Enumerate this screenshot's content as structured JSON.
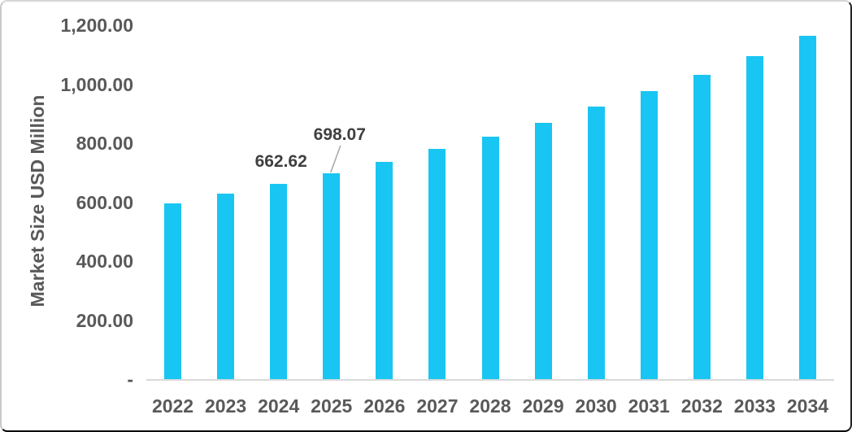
{
  "chart_data": {
    "type": "bar",
    "ylabel": "Market Size USD Million",
    "xlabel": "",
    "categories": [
      "2022",
      "2023",
      "2024",
      "2025",
      "2026",
      "2027",
      "2028",
      "2029",
      "2030",
      "2031",
      "2032",
      "2033",
      "2034"
    ],
    "values": [
      596,
      628,
      662.62,
      698.07,
      737,
      780,
      823,
      870,
      923,
      976,
      1033,
      1095,
      1163
    ],
    "data_labels": [
      {
        "category": "2024",
        "text": "662.62",
        "leader_line": false
      },
      {
        "category": "2025",
        "text": "698.07",
        "leader_line": true
      }
    ],
    "ylim": [
      0,
      1200
    ],
    "ytick_labels": [
      "-",
      "200.00",
      "400.00",
      "600.00",
      "800.00",
      "1,000.00",
      "1,200.00"
    ],
    "grid": false,
    "legend": "none",
    "bar_color": "#19C5F2",
    "axis_text_color": "#595959",
    "data_label_color": "#3F3F3F",
    "baseline_color": "#D9D9D9",
    "leader_line_color": "#A6A6A6"
  }
}
